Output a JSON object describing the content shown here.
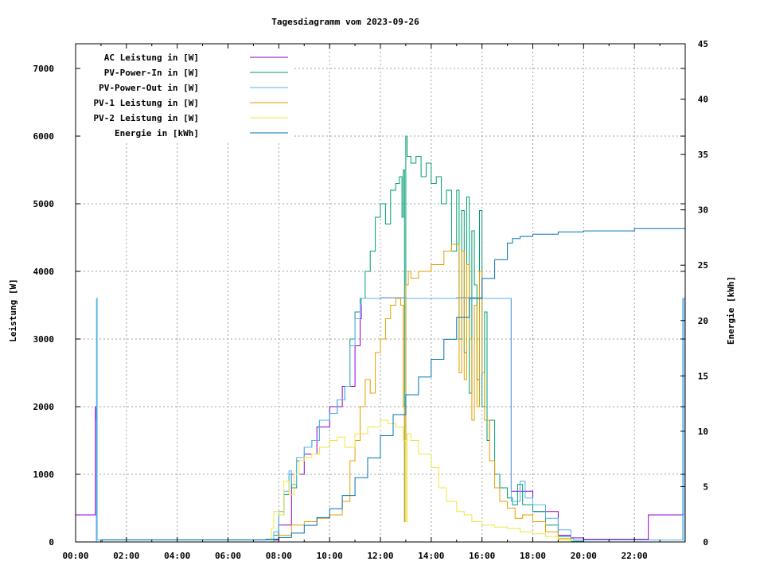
{
  "chart_data": {
    "type": "line",
    "title": "Tagesdiagramm vom 2023-09-26",
    "xlabel": "",
    "ylabel": "Leistung [W]",
    "y2label": "Energie [kWh]",
    "xlim": [
      0,
      24
    ],
    "ylim": [
      0,
      7365
    ],
    "y2lim": [
      0,
      45
    ],
    "grid": true,
    "legend_position": "top-left",
    "x_ticks": [
      {
        "v": 0,
        "label": "00:00"
      },
      {
        "v": 2,
        "label": "02:00"
      },
      {
        "v": 4,
        "label": "04:00"
      },
      {
        "v": 6,
        "label": "06:00"
      },
      {
        "v": 8,
        "label": "08:00"
      },
      {
        "v": 10,
        "label": "10:00"
      },
      {
        "v": 12,
        "label": "12:00"
      },
      {
        "v": 14,
        "label": "14:00"
      },
      {
        "v": 16,
        "label": "16:00"
      },
      {
        "v": 18,
        "label": "18:00"
      },
      {
        "v": 20,
        "label": "20:00"
      },
      {
        "v": 22,
        "label": "22:00"
      }
    ],
    "y_ticks": [
      {
        "v": 0,
        "label": "0"
      },
      {
        "v": 1000,
        "label": "1000"
      },
      {
        "v": 2000,
        "label": "2000"
      },
      {
        "v": 3000,
        "label": "3000"
      },
      {
        "v": 4000,
        "label": "4000"
      },
      {
        "v": 5000,
        "label": "5000"
      },
      {
        "v": 6000,
        "label": "6000"
      },
      {
        "v": 7000,
        "label": "7000"
      }
    ],
    "y2_ticks": [
      {
        "v": 0,
        "label": "0"
      },
      {
        "v": 5,
        "label": "5"
      },
      {
        "v": 10,
        "label": "10"
      },
      {
        "v": 15,
        "label": "15"
      },
      {
        "v": 20,
        "label": "20"
      },
      {
        "v": 25,
        "label": "25"
      },
      {
        "v": 30,
        "label": "30"
      },
      {
        "v": 35,
        "label": "35"
      },
      {
        "v": 40,
        "label": "40"
      },
      {
        "v": 45,
        "label": "45"
      }
    ],
    "series": [
      {
        "name": "AC Leistung in [W]",
        "color": "#9400D3",
        "axis": "y",
        "x": [
          0,
          0.75,
          0.78,
          0.8,
          0.82,
          1,
          6.9,
          7.3,
          8,
          8.5,
          9,
          9.5,
          10,
          10.5,
          11,
          11.2,
          11.25,
          12,
          13,
          14,
          15,
          16,
          17,
          17.1,
          17.15,
          18,
          19,
          19.5,
          20,
          21,
          22.2,
          22.5,
          22.55,
          23.9,
          23.95,
          24
        ],
        "y": [
          400,
          400,
          2000,
          1800,
          30,
          30,
          30,
          30,
          250,
          1000,
          1300,
          1700,
          2000,
          2300,
          2900,
          3300,
          3600,
          3610,
          3600,
          3600,
          3610,
          3600,
          3600,
          3600,
          750,
          450,
          100,
          60,
          40,
          40,
          40,
          40,
          400,
          410,
          3600,
          1800
        ]
      },
      {
        "name": "PV-Power-In in [W]",
        "color": "#009E73",
        "axis": "y",
        "x": [
          0,
          7.5,
          7.8,
          8,
          8.2,
          8.4,
          8.5,
          8.7,
          9,
          9.3,
          9.6,
          10,
          10.3,
          10.6,
          10.8,
          11,
          11.2,
          11.4,
          11.6,
          11.8,
          12,
          12.2,
          12.4,
          12.6,
          12.75,
          12.85,
          12.9,
          12.95,
          13.0,
          13.05,
          13.2,
          13.4,
          13.6,
          13.8,
          14,
          14.2,
          14.4,
          14.6,
          14.8,
          15,
          15.1,
          15.2,
          15.3,
          15.4,
          15.5,
          15.6,
          15.7,
          15.8,
          15.9,
          16,
          16.1,
          16.2,
          16.3,
          16.5,
          16.7,
          17,
          17.2,
          17.4,
          17.6,
          18,
          18.5,
          19,
          19.5,
          20,
          24
        ],
        "y": [
          0,
          0,
          100,
          400,
          700,
          1000,
          800,
          1200,
          1400,
          1500,
          1800,
          1900,
          2100,
          2300,
          3000,
          3400,
          3600,
          4000,
          4300,
          4800,
          5000,
          4700,
          5200,
          5300,
          5400,
          4800,
          5500,
          300,
          6000,
          5700,
          5600,
          5700,
          5400,
          5600,
          5300,
          5400,
          5000,
          5200,
          4300,
          5200,
          3000,
          4900,
          2800,
          5100,
          2200,
          4600,
          3800,
          2400,
          4900,
          2000,
          3400,
          1500,
          1800,
          1000,
          800,
          650,
          550,
          850,
          550,
          450,
          250,
          80,
          10,
          0,
          0
        ]
      },
      {
        "name": "PV-Power-Out in [W]",
        "color": "#56B4E9",
        "axis": "y",
        "x": [
          0,
          0.8,
          0.82,
          0.85,
          1,
          7.5,
          7.8,
          8,
          8.2,
          8.4,
          8.5,
          8.7,
          9,
          9.3,
          9.6,
          10,
          10.3,
          10.6,
          10.8,
          11,
          11.2,
          11.25,
          12,
          13,
          14,
          15,
          16,
          17,
          17.1,
          17.15,
          17.3,
          17.5,
          17.7,
          18,
          18.5,
          19,
          19.5,
          19.6,
          20,
          23.85,
          23.9,
          23.95,
          24
        ],
        "y": [
          0,
          0,
          3600,
          30,
          30,
          30,
          150,
          450,
          750,
          1050,
          850,
          1250,
          1400,
          1500,
          1800,
          1900,
          2100,
          2300,
          2900,
          3300,
          3500,
          3600,
          3610,
          3600,
          3600,
          3610,
          3600,
          3600,
          3600,
          600,
          600,
          900,
          650,
          550,
          350,
          180,
          50,
          30,
          30,
          30,
          3600,
          20,
          3600
        ]
      },
      {
        "name": "PV-1 Leistung in [W]",
        "color": "#E69F00",
        "axis": "y",
        "x": [
          0,
          7.5,
          8,
          8.5,
          9,
          9.5,
          10,
          10.5,
          10.8,
          11,
          11.2,
          11.4,
          11.6,
          11.8,
          12,
          12.2,
          12.4,
          12.6,
          12.8,
          12.9,
          12.95,
          13.0,
          13.1,
          13.2,
          13.5,
          14,
          14.5,
          14.8,
          15,
          15.1,
          15.2,
          15.3,
          15.4,
          15.5,
          15.6,
          15.7,
          15.8,
          15.9,
          16,
          16.1,
          16.3,
          16.5,
          16.7,
          17,
          17.3,
          17.6,
          18,
          18.5,
          19,
          19.5,
          24
        ],
        "y": [
          0,
          0,
          100,
          250,
          300,
          350,
          400,
          600,
          1200,
          1500,
          2000,
          2400,
          2200,
          2800,
          3000,
          3300,
          3500,
          3600,
          3500,
          2000,
          300,
          3800,
          4000,
          3900,
          4000,
          4100,
          4300,
          4400,
          4400,
          2500,
          4300,
          2400,
          4100,
          3000,
          1800,
          3500,
          2000,
          4000,
          2500,
          1800,
          1200,
          800,
          600,
          500,
          350,
          400,
          300,
          150,
          50,
          0,
          0
        ]
      },
      {
        "name": "PV-2 Leistung in [W]",
        "color": "#F0E442",
        "axis": "y",
        "x": [
          0,
          7.5,
          7.7,
          7.8,
          8,
          8.2,
          8.4,
          8.6,
          8.8,
          9,
          9.3,
          9.6,
          10,
          10.3,
          10.6,
          11,
          11.5,
          12,
          12.3,
          12.6,
          12.9,
          13.0,
          13.05,
          13.2,
          13.5,
          14,
          14.3,
          14.6,
          15,
          15.3,
          15.6,
          16,
          16.5,
          17,
          17.5,
          18,
          18.5,
          19,
          19.5,
          24
        ],
        "y": [
          0,
          0,
          200,
          450,
          400,
          900,
          700,
          1000,
          1200,
          1250,
          1300,
          1400,
          1500,
          1550,
          1400,
          1600,
          1700,
          1800,
          1750,
          1700,
          1500,
          300,
          1600,
          1500,
          1300,
          1100,
          800,
          600,
          450,
          400,
          300,
          250,
          220,
          200,
          150,
          120,
          80,
          30,
          0,
          0
        ]
      },
      {
        "name": "Energie in [kWh]",
        "color": "#0072B2",
        "axis": "y2",
        "x": [
          0,
          1,
          1.05,
          7.5,
          8,
          8.5,
          9,
          9.5,
          10,
          10.5,
          11,
          11.5,
          12,
          12.5,
          13,
          13.5,
          14,
          14.5,
          15,
          15.5,
          16,
          16.5,
          17,
          17.2,
          17.5,
          18,
          19,
          20,
          22,
          24
        ],
        "y": [
          0,
          0,
          0.2,
          0.25,
          0.4,
          0.8,
          1.5,
          2.2,
          3.0,
          4.2,
          5.8,
          7.6,
          9.6,
          11.5,
          13.3,
          14.9,
          16.5,
          18.3,
          20.3,
          22.0,
          23.8,
          25.5,
          27.0,
          27.4,
          27.6,
          27.8,
          28.0,
          28.1,
          28.3,
          28.5
        ]
      }
    ]
  }
}
